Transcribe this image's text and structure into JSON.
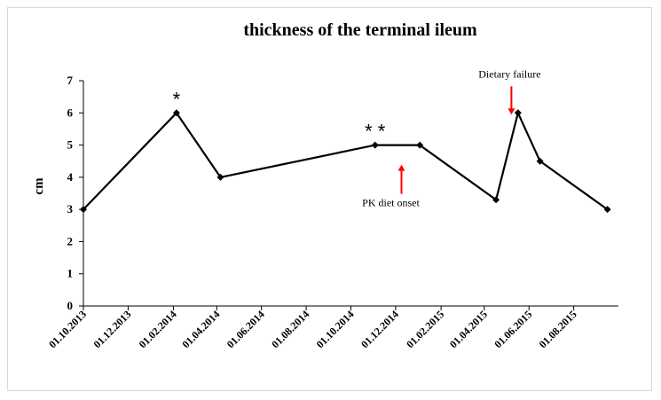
{
  "chart_data": {
    "type": "line",
    "title": "thickness of the terminal ileum",
    "xlabel": "",
    "ylabel": "cm",
    "ylim": [
      0,
      7
    ],
    "yticks": [
      "0",
      "1",
      "2",
      "3",
      "4",
      "5",
      "6",
      "7"
    ],
    "xticks": [
      "01.10.2013",
      "01.12.2013",
      "01.02.2014",
      "01.04.2014",
      "01.06.2014",
      "01.08.2014",
      "01.10.2014",
      "01.12.2014",
      "01.02.2015",
      "01.04.2015",
      "01.06.2015",
      "01.08.2015"
    ],
    "xlim": [
      "2013-10-01",
      "2015-10-01"
    ],
    "grid": false,
    "series": [
      {
        "color": "#000000",
        "points": [
          {
            "x": "2013-10-01",
            "y": 3
          },
          {
            "x": "2014-02-05",
            "y": 6
          },
          {
            "x": "2014-04-06",
            "y": 4
          },
          {
            "x": "2014-11-03",
            "y": 5
          },
          {
            "x": "2015-01-03",
            "y": 5
          },
          {
            "x": "2015-04-17",
            "y": 3.3
          },
          {
            "x": "2015-05-17",
            "y": 6
          },
          {
            "x": "2015-06-16",
            "y": 4.5
          },
          {
            "x": "2015-09-16",
            "y": 3
          }
        ]
      }
    ],
    "annotations": [
      {
        "text": "*",
        "x": "2014-02-05",
        "y": 6,
        "kind": "star"
      },
      {
        "text": "* *",
        "x": "2014-11-03",
        "y": 5,
        "kind": "star"
      },
      {
        "text": "PK diet onset",
        "x": "2014-12-09",
        "y": 5,
        "kind": "arrow-up",
        "arrow_color": "#ff0000"
      },
      {
        "text": "Dietary  failure",
        "x": "2015-05-08",
        "y": 6,
        "kind": "arrow-down",
        "arrow_color": "#ff0000"
      }
    ]
  }
}
